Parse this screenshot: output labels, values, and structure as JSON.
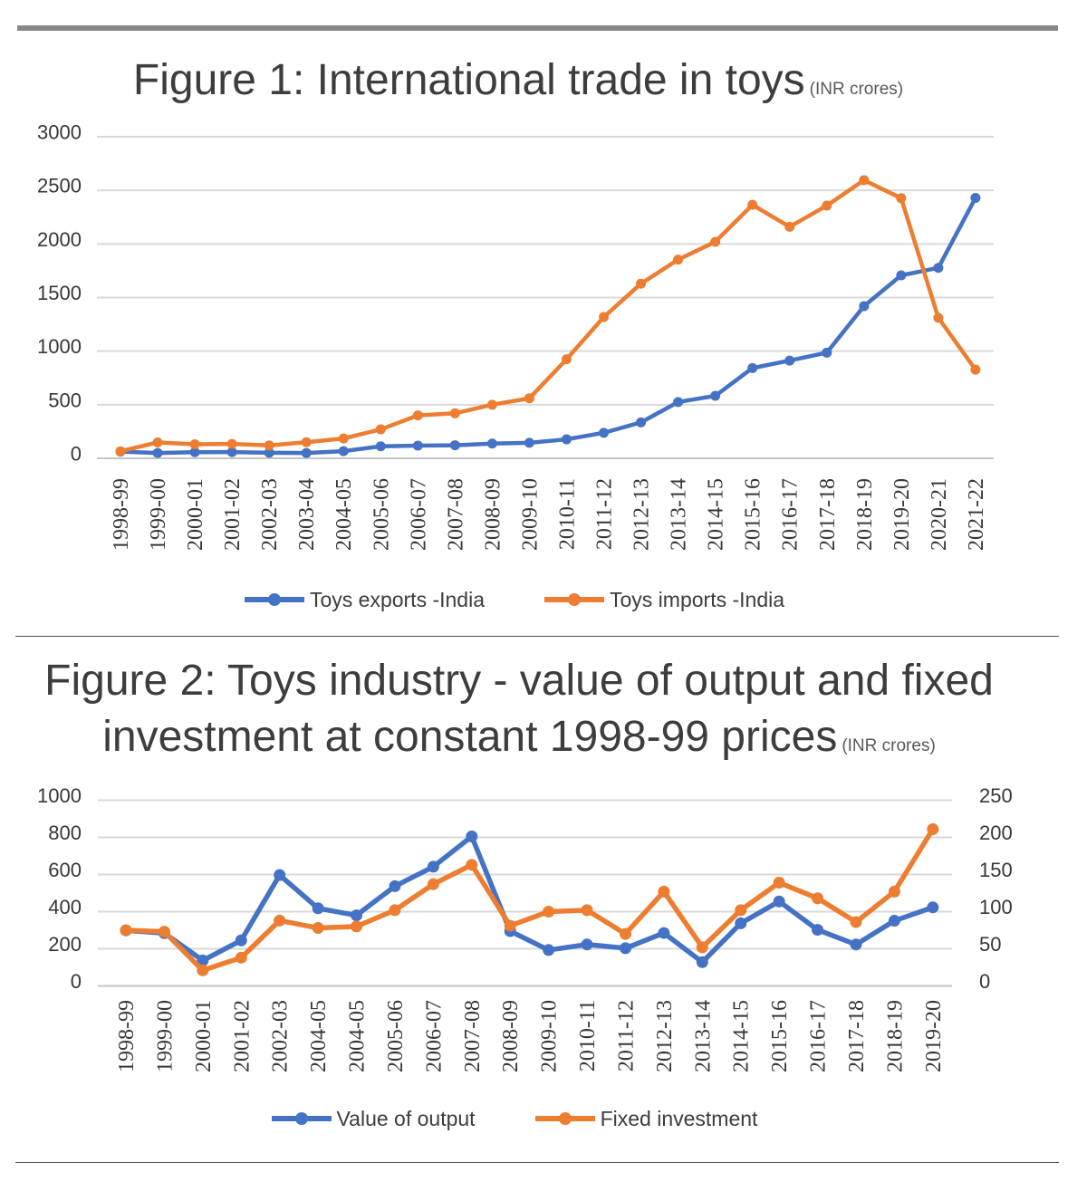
{
  "page": {
    "background": "#ffffff",
    "accent_bar_color": "#898989",
    "divider_color": "#515151",
    "gridline_color": "#d9d9d9",
    "axis_line_color": "#c6c6c6",
    "text_color": "#3d3d3d"
  },
  "chart_data": [
    {
      "type": "line",
      "title": "Figure 1: International trade in toys",
      "unit": "(INR crores)",
      "categories": [
        "1998-99",
        "1999-00",
        "2000-01",
        "2001-02",
        "2002-03",
        "2003-04",
        "2004-05",
        "2005-06",
        "2006-07",
        "2007-08",
        "2008-09",
        "2009-10",
        "2010-11",
        "2011-12",
        "2012-13",
        "2013-14",
        "2014-15",
        "2015-16",
        "2016-17",
        "2017-18",
        "2018-19",
        "2019-20",
        "2020-21",
        "2021-22"
      ],
      "series": [
        {
          "name": "Toys exports -India",
          "color": "#4472c4",
          "values": [
            62,
            50,
            57,
            58,
            52,
            50,
            67,
            112,
            118,
            122,
            137,
            145,
            177,
            238,
            335,
            525,
            583,
            842,
            912,
            986,
            1420,
            1707,
            1777,
            2430
          ]
        },
        {
          "name": "Toys imports -India",
          "color": "#ed7d31",
          "values": [
            66,
            148,
            131,
            134,
            120,
            150,
            185,
            270,
            400,
            420,
            500,
            560,
            924,
            1318,
            1629,
            1854,
            2020,
            2365,
            2160,
            2358,
            2595,
            2427,
            1311,
            827
          ]
        }
      ],
      "ylim": [
        0,
        3000
      ],
      "ytick_step": 500,
      "yticks": [
        "0",
        "500",
        "1000",
        "1500",
        "2000",
        "2500",
        "3000"
      ],
      "grid": true,
      "legend_position": "bottom"
    },
    {
      "type": "line",
      "title": "Figure 2: Toys industry - value of output and fixed",
      "title_line2": "investment at constant 1998-99 prices",
      "unit": "(INR crores)",
      "categories": [
        "1998-99",
        "1999-00",
        "2000-01",
        "2001-02",
        "2002-03",
        "2004-05",
        "2004-05",
        "2005-06",
        "2006-07",
        "2007-08",
        "2008-09",
        "2009-10",
        "2010-11",
        "2011-12",
        "2012-13",
        "2013-14",
        "2014-15",
        "2015-16",
        "2016-17",
        "2017-18",
        "2018-19",
        "2019-20"
      ],
      "series": [
        {
          "name": "Value of output",
          "color": "#4472c4",
          "axis": "left",
          "values": [
            299,
            284,
            137,
            245,
            597,
            418,
            380,
            537,
            642,
            805,
            295,
            193,
            223,
            203,
            285,
            128,
            337,
            455,
            302,
            223,
            351,
            423
          ]
        },
        {
          "name": "Fixed investment",
          "color": "#ed7d31",
          "axis": "right",
          "values": [
            75,
            73,
            21,
            38,
            88,
            78,
            80,
            102,
            137,
            163,
            81,
            100,
            102,
            70,
            127,
            52,
            102,
            139,
            118,
            86,
            127,
            211
          ]
        }
      ],
      "ylim_left": [
        0,
        1000
      ],
      "yticks_left": [
        "0",
        "200",
        "400",
        "600",
        "800",
        "1000"
      ],
      "ylim_right": [
        0,
        250
      ],
      "yticks_right": [
        "0",
        "50",
        "100",
        "150",
        "200",
        "250"
      ],
      "grid": true,
      "legend_position": "bottom"
    }
  ]
}
